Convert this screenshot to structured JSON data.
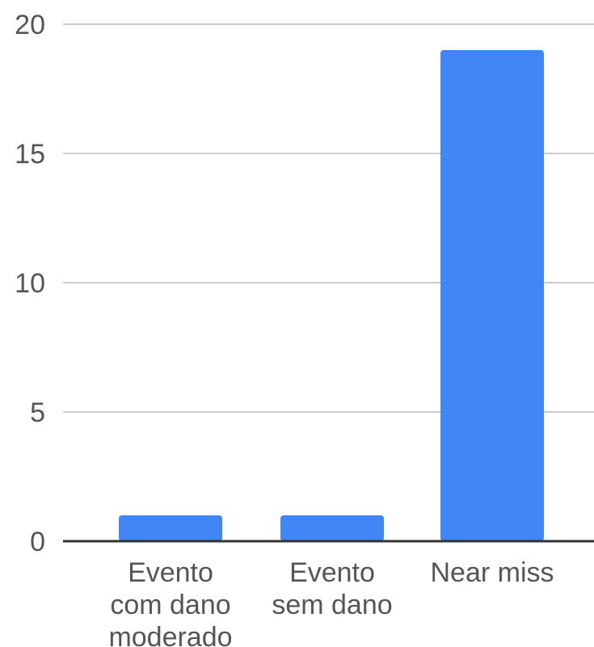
{
  "chart_data": {
    "type": "bar",
    "categories": [
      [
        "Evento",
        "com dano",
        "moderado"
      ],
      [
        "Evento",
        "sem dano"
      ],
      [
        "Near miss"
      ]
    ],
    "values": [
      1,
      1,
      19
    ],
    "ylim": [
      0,
      20
    ],
    "yticks": [
      0,
      5,
      10,
      15,
      20
    ],
    "grid": true,
    "bar_color": "#4285f4",
    "title": "",
    "xlabel": "",
    "ylabel": ""
  }
}
